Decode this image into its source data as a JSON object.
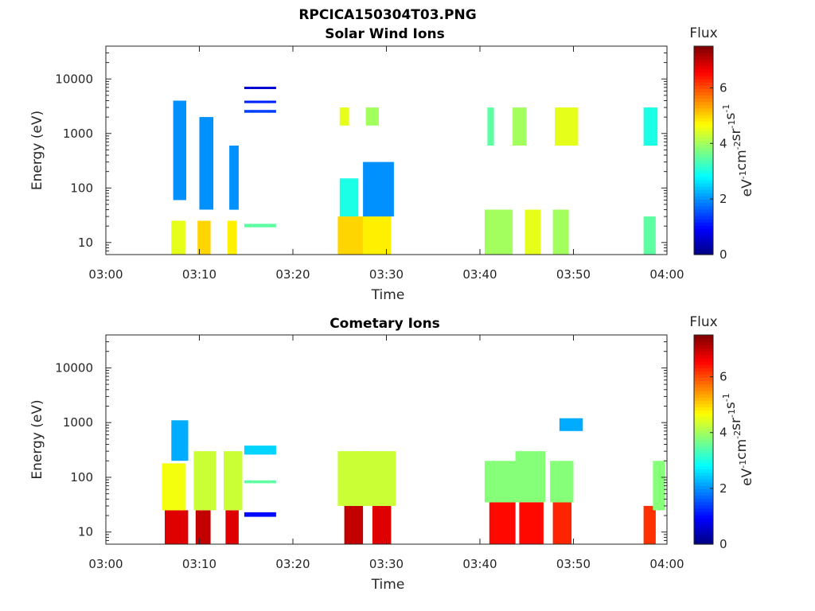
{
  "figure": {
    "filename": "RPCICA150304T03.PNG"
  },
  "chart_data": [
    {
      "type": "heatmap",
      "title": "Solar Wind Ions",
      "xlabel": "Time",
      "ylabel": "Energy (eV)",
      "xticks": [
        "03:00",
        "03:10",
        "03:20",
        "03:30",
        "03:40",
        "03:50",
        "04:00"
      ],
      "xlim_minutes": [
        0,
        60
      ],
      "ylim": [
        6,
        40000
      ],
      "yscale": "log",
      "yticks": [
        10,
        100,
        1000,
        10000
      ],
      "ytick_labels": [
        "10",
        "100",
        "1000",
        "10000"
      ],
      "colorbar": {
        "title": "Flux",
        "label": "eV-1cm-2sr-1s-1",
        "range": [
          0,
          7.5
        ],
        "ticks": [
          "0",
          "2",
          "4",
          "6"
        ]
      },
      "patches": [
        {
          "t": [
            7.0,
            8.5
          ],
          "e": [
            6,
            25
          ],
          "flux": 4.5
        },
        {
          "t": [
            7.2,
            8.6
          ],
          "e": [
            60,
            4000
          ],
          "flux": 2.0
        },
        {
          "t": [
            9.8,
            11.2
          ],
          "e": [
            6,
            25
          ],
          "flux": 5.0
        },
        {
          "t": [
            10.0,
            11.5
          ],
          "e": [
            40,
            2000
          ],
          "flux": 2.0
        },
        {
          "t": [
            13.0,
            14.0
          ],
          "e": [
            6,
            25
          ],
          "flux": 4.8
        },
        {
          "t": [
            13.2,
            14.2
          ],
          "e": [
            40,
            600
          ],
          "flux": 2.0
        },
        {
          "t": [
            14.8,
            18.2
          ],
          "e": [
            19,
            22
          ],
          "flux": 3.5
        },
        {
          "t": [
            14.8,
            18.2
          ],
          "e": [
            6500,
            7200
          ],
          "flux": 0.6
        },
        {
          "t": [
            14.8,
            18.2
          ],
          "e": [
            3600,
            4000
          ],
          "flux": 1.2
        },
        {
          "t": [
            14.8,
            18.2
          ],
          "e": [
            2400,
            2700
          ],
          "flux": 1.4
        },
        {
          "t": [
            24.8,
            27.8
          ],
          "e": [
            6,
            30
          ],
          "flux": 5.0
        },
        {
          "t": [
            25.0,
            27.0
          ],
          "e": [
            30,
            150
          ],
          "flux": 3.0
        },
        {
          "t": [
            25.0,
            26.0
          ],
          "e": [
            1400,
            3000
          ],
          "flux": 4.5
        },
        {
          "t": [
            27.5,
            30.5
          ],
          "e": [
            6,
            30
          ],
          "flux": 4.8
        },
        {
          "t": [
            27.5,
            30.8
          ],
          "e": [
            30,
            300
          ],
          "flux": 2.0
        },
        {
          "t": [
            27.8,
            29.2
          ],
          "e": [
            1400,
            3000
          ],
          "flux": 4.0
        },
        {
          "t": [
            40.5,
            43.5
          ],
          "e": [
            6,
            40
          ],
          "flux": 4.0
        },
        {
          "t": [
            40.8,
            41.5
          ],
          "e": [
            600,
            3000
          ],
          "flux": 3.5
        },
        {
          "t": [
            43.5,
            45.0
          ],
          "e": [
            600,
            3000
          ],
          "flux": 4.0
        },
        {
          "t": [
            44.8,
            46.5
          ],
          "e": [
            6,
            40
          ],
          "flux": 4.5
        },
        {
          "t": [
            47.8,
            49.5
          ],
          "e": [
            6,
            40
          ],
          "flux": 4.0
        },
        {
          "t": [
            48.0,
            50.5
          ],
          "e": [
            600,
            3000
          ],
          "flux": 4.5
        },
        {
          "t": [
            57.5,
            58.8
          ],
          "e": [
            6,
            30
          ],
          "flux": 3.5
        },
        {
          "t": [
            57.5,
            59.0
          ],
          "e": [
            600,
            3000
          ],
          "flux": 3.0
        }
      ]
    },
    {
      "type": "heatmap",
      "title": "Cometary Ions",
      "xlabel": "Time",
      "ylabel": "Energy (eV)",
      "xticks": [
        "03:00",
        "03:10",
        "03:20",
        "03:30",
        "03:40",
        "03:50",
        "04:00"
      ],
      "xlim_minutes": [
        0,
        60
      ],
      "ylim": [
        6,
        40000
      ],
      "yscale": "log",
      "yticks": [
        10,
        100,
        1000,
        10000
      ],
      "ytick_labels": [
        "10",
        "100",
        "1000",
        "10000"
      ],
      "colorbar": {
        "title": "Flux",
        "label": "eV-1cm-2sr-1s-1",
        "range": [
          0,
          7.5
        ],
        "ticks": [
          "0",
          "2",
          "4",
          "6"
        ]
      },
      "patches": [
        {
          "t": [
            6.3,
            8.8
          ],
          "e": [
            6,
            25
          ],
          "flux": 6.8
        },
        {
          "t": [
            6.0,
            8.5
          ],
          "e": [
            25,
            180
          ],
          "flux": 4.6
        },
        {
          "t": [
            7.0,
            8.8
          ],
          "e": [
            200,
            1100
          ],
          "flux": 2.2
        },
        {
          "t": [
            9.6,
            11.2
          ],
          "e": [
            6,
            25
          ],
          "flux": 7.0
        },
        {
          "t": [
            9.4,
            11.8
          ],
          "e": [
            25,
            300
          ],
          "flux": 4.3
        },
        {
          "t": [
            12.8,
            14.2
          ],
          "e": [
            6,
            25
          ],
          "flux": 6.8
        },
        {
          "t": [
            12.6,
            14.6
          ],
          "e": [
            25,
            300
          ],
          "flux": 4.3
        },
        {
          "t": [
            14.8,
            18.2
          ],
          "e": [
            260,
            380
          ],
          "flux": 2.5
        },
        {
          "t": [
            14.8,
            18.2
          ],
          "e": [
            78,
            88
          ],
          "flux": 3.5
        },
        {
          "t": [
            14.8,
            18.2
          ],
          "e": [
            19,
            23
          ],
          "flux": 1.0
        },
        {
          "t": [
            25.5,
            27.5
          ],
          "e": [
            6,
            30
          ],
          "flux": 7.0
        },
        {
          "t": [
            24.8,
            28.0
          ],
          "e": [
            30,
            300
          ],
          "flux": 4.3
        },
        {
          "t": [
            28.5,
            30.5
          ],
          "e": [
            6,
            30
          ],
          "flux": 6.8
        },
        {
          "t": [
            27.5,
            31.0
          ],
          "e": [
            30,
            300
          ],
          "flux": 4.3
        },
        {
          "t": [
            41.0,
            43.8
          ],
          "e": [
            6,
            35
          ],
          "flux": 6.5
        },
        {
          "t": [
            40.5,
            44.0
          ],
          "e": [
            35,
            200
          ],
          "flux": 3.8
        },
        {
          "t": [
            44.2,
            46.8
          ],
          "e": [
            6,
            35
          ],
          "flux": 6.5
        },
        {
          "t": [
            43.8,
            47.0
          ],
          "e": [
            35,
            300
          ],
          "flux": 3.8
        },
        {
          "t": [
            47.8,
            49.8
          ],
          "e": [
            6,
            35
          ],
          "flux": 6.3
        },
        {
          "t": [
            47.5,
            50.0
          ],
          "e": [
            35,
            200
          ],
          "flux": 3.8
        },
        {
          "t": [
            48.5,
            51.0
          ],
          "e": [
            700,
            1200
          ],
          "flux": 2.2
        },
        {
          "t": [
            57.5,
            58.8
          ],
          "e": [
            6,
            30
          ],
          "flux": 6.2
        },
        {
          "t": [
            58.5,
            59.8
          ],
          "e": [
            25,
            200
          ],
          "flux": 3.8
        }
      ]
    }
  ]
}
